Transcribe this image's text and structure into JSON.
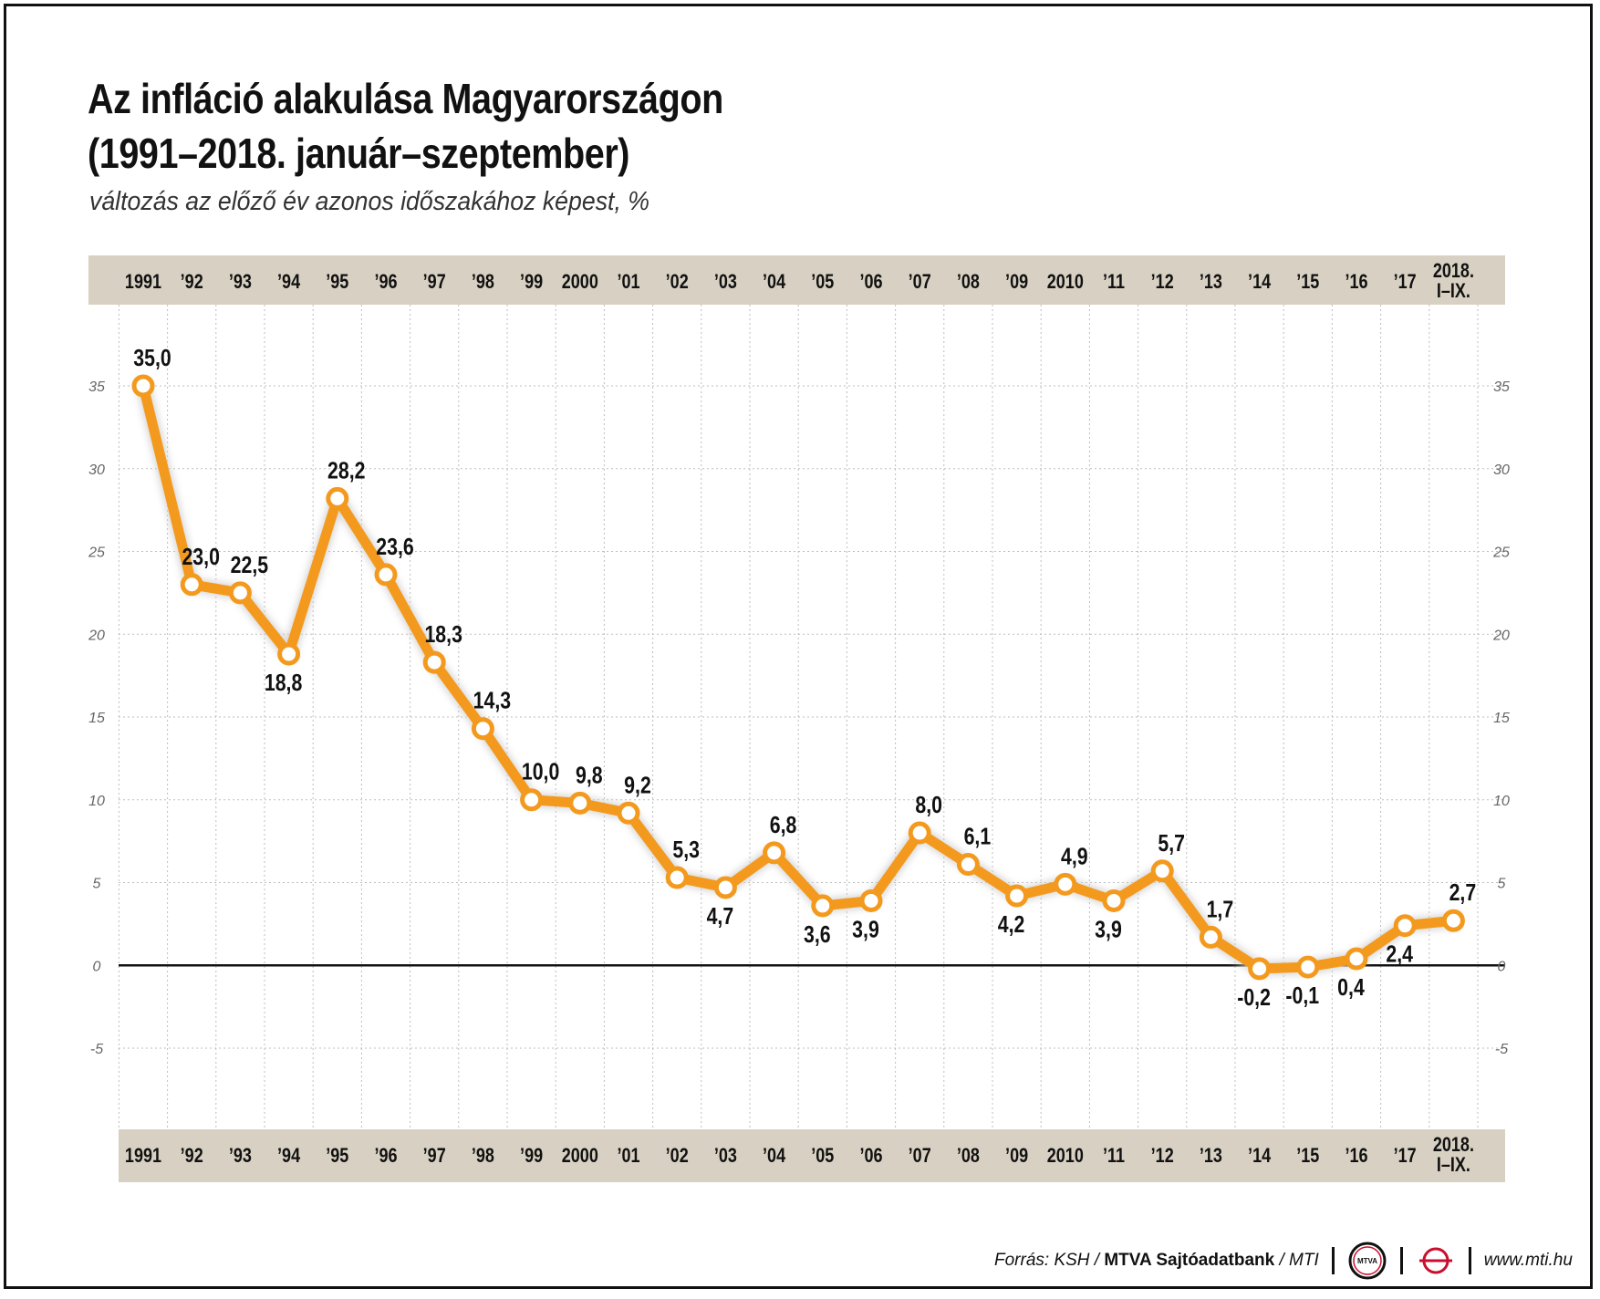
{
  "header": {
    "title_line1": "Az infláció alakulása Magyarországon",
    "title_line2": "(1991–2018. január–szeptember)",
    "subtitle": "változás az előző év azonos időszakához képest, %"
  },
  "footer": {
    "source_prefix": "Forrás: KSH / ",
    "source_bold": "MTVA Sajtóadatbank",
    "source_suffix": " / MTI",
    "logo_text": "MTVA",
    "url": "www.mti.hu"
  },
  "colors": {
    "line": "#F39A1E",
    "marker_fill": "#ffffff",
    "axis_band": "#D8D1C3",
    "grid": "#BDBDBD",
    "zero_line": "#111111",
    "text": "#111111",
    "tick_text": "#666666"
  },
  "chart_data": {
    "type": "line",
    "title": "Az infláció alakulása Magyarországon (1991–2018. január–szeptember)",
    "subtitle": "változás az előző év azonos időszakához képest, %",
    "categories": [
      "1991",
      "’92",
      "’93",
      "’94",
      "’95",
      "’96",
      "’97",
      "’98",
      "’99",
      "2000",
      "’01",
      "’02",
      "’03",
      "’04",
      "’05",
      "’06",
      "’07",
      "’08",
      "’09",
      "2010",
      "’11",
      "’12",
      "’13",
      "’14",
      "’15",
      "’16",
      "’17",
      "2018. I–IX."
    ],
    "series": [
      {
        "values": [
          35.0,
          23.0,
          22.5,
          18.8,
          28.2,
          23.6,
          18.3,
          14.3,
          10.0,
          9.8,
          9.2,
          5.3,
          4.7,
          6.8,
          3.6,
          3.9,
          8.0,
          6.1,
          4.2,
          4.9,
          3.9,
          5.7,
          1.7,
          -0.2,
          -0.1,
          0.4,
          2.4,
          2.7
        ],
        "labels": [
          "35,0",
          "23,0",
          "22,5",
          "18,8",
          "28,2",
          "23,6",
          "18,3",
          "14,3",
          "10,0",
          "9,8",
          "9,2",
          "5,3",
          "4,7",
          "6,8",
          "3,6",
          "3,9",
          "8,0",
          "6,1",
          "4,2",
          "4,9",
          "3,9",
          "5,7",
          "1,7",
          "-0,2",
          "-0,1",
          "0,4",
          "2,4",
          "2,7"
        ]
      }
    ],
    "ylim": [
      -5,
      35
    ],
    "yticks": [
      35,
      30,
      25,
      20,
      15,
      10,
      5,
      0,
      -5
    ],
    "grid": true,
    "legend": "none"
  }
}
